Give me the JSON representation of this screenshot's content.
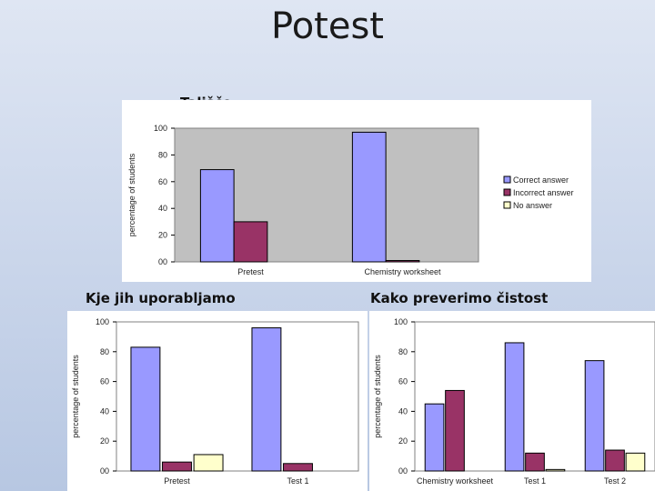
{
  "slide": {
    "title": "Potest"
  },
  "chart_data": [
    {
      "type": "bar",
      "title": "Tališče",
      "categories": [
        "Pretest",
        "Chemistry worksheet"
      ],
      "series": [
        {
          "name": "Correct answer",
          "values": [
            69,
            97
          ]
        },
        {
          "name": "Incorrect answer",
          "values": [
            30,
            1
          ]
        },
        {
          "name": "No answer",
          "values": [
            0,
            0
          ]
        }
      ],
      "ylabel": "percentage of students",
      "ylim": [
        0,
        100
      ],
      "yticks": [
        "00",
        "20",
        "40",
        "60",
        "80",
        "100"
      ],
      "plot_background": "#c0c0c0",
      "legend": "right",
      "grid": false
    },
    {
      "type": "bar",
      "title": "Kje jih uporabljamo",
      "categories": [
        "Pretest",
        "Test 1"
      ],
      "series": [
        {
          "name": "Correct answer",
          "values": [
            83,
            96
          ]
        },
        {
          "name": "Incorrect answer",
          "values": [
            6,
            5
          ]
        },
        {
          "name": "No answer",
          "values": [
            11,
            0
          ]
        }
      ],
      "ylabel": "percentage of students",
      "ylim": [
        0,
        100
      ],
      "yticks": [
        "00",
        "20",
        "40",
        "60",
        "80",
        "100"
      ],
      "plot_background": "#ffffff",
      "grid": false
    },
    {
      "type": "bar",
      "title": "Kako preverimo čistost",
      "categories": [
        "Chemistry worksheet",
        "Test 1",
        "Test 2"
      ],
      "series": [
        {
          "name": "Correct answer",
          "values": [
            45,
            86,
            74
          ]
        },
        {
          "name": "Incorrect answer",
          "values": [
            54,
            12,
            14
          ]
        },
        {
          "name": "No answer",
          "values": [
            0,
            1,
            12
          ]
        }
      ],
      "ylabel": "percentage of students",
      "ylim": [
        0,
        100
      ],
      "yticks": [
        "00",
        "20",
        "40",
        "60",
        "80",
        "100"
      ],
      "plot_background": "#ffffff",
      "grid": false
    }
  ],
  "colors": {
    "correct": "#9999ff",
    "incorrect": "#993366",
    "none": "#ffffcc"
  }
}
